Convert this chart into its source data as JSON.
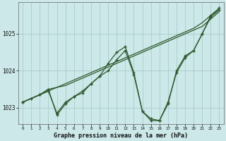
{
  "title": "Graphe pression niveau de la mer (hPa)",
  "background_color": "#cce8e8",
  "grid_color": "#aacccc",
  "line_color": "#2d5a2d",
  "x_hours": [
    0,
    1,
    2,
    3,
    4,
    5,
    6,
    7,
    8,
    9,
    10,
    11,
    12,
    13,
    14,
    15,
    16,
    17,
    18,
    19,
    20,
    21,
    22,
    23
  ],
  "line1_x": [
    0,
    1,
    2,
    3,
    4,
    5,
    6,
    7,
    8,
    9,
    10,
    11,
    12,
    13,
    14,
    15,
    16,
    17,
    18,
    19,
    20,
    21,
    22,
    23
  ],
  "line1_y": [
    1023.15,
    1023.25,
    1023.35,
    1023.45,
    1022.85,
    1023.15,
    1023.3,
    1023.45,
    1023.65,
    1023.85,
    1024.0,
    1024.3,
    1024.55,
    1023.9,
    1022.9,
    1022.65,
    1022.65,
    1023.1,
    1024.0,
    1024.4,
    1024.55,
    1025.0,
    1025.5,
    1025.7
  ],
  "line2_x": [
    0,
    1,
    2,
    3,
    4,
    5,
    6,
    7,
    8,
    9,
    10,
    11,
    12,
    13,
    14,
    15,
    16,
    17,
    18,
    19,
    20,
    21,
    22,
    23
  ],
  "line2_y": [
    1023.15,
    1023.25,
    1023.35,
    1023.5,
    1023.55,
    1023.6,
    1023.7,
    1023.8,
    1023.9,
    1024.0,
    1024.1,
    1024.2,
    1024.3,
    1024.4,
    1024.5,
    1024.6,
    1024.7,
    1024.8,
    1024.9,
    1025.0,
    1025.1,
    1025.2,
    1025.4,
    1025.6
  ],
  "line3_x": [
    0,
    1,
    2,
    3,
    4,
    5,
    6,
    7,
    8,
    9,
    10,
    11,
    12,
    13,
    14,
    15,
    16,
    17,
    18,
    19,
    20,
    21,
    22,
    23
  ],
  "line3_y": [
    1023.15,
    1023.25,
    1023.35,
    1023.45,
    1023.55,
    1023.65,
    1023.75,
    1023.85,
    1023.95,
    1024.05,
    1024.15,
    1024.25,
    1024.35,
    1024.45,
    1024.55,
    1024.65,
    1024.75,
    1024.85,
    1024.95,
    1025.05,
    1025.15,
    1025.3,
    1025.5,
    1025.65
  ],
  "line4_x": [
    0,
    2,
    3,
    4,
    5,
    6,
    7,
    8,
    9,
    10,
    11,
    12,
    13,
    14,
    15,
    16,
    17,
    18,
    19,
    20,
    21,
    22,
    23
  ],
  "line4_y": [
    1023.15,
    1023.35,
    1023.5,
    1022.8,
    1023.1,
    1023.3,
    1023.4,
    1023.65,
    1023.85,
    1024.2,
    1024.5,
    1024.65,
    1023.95,
    1022.9,
    1022.7,
    1022.65,
    1023.15,
    1023.95,
    1024.35,
    1024.55,
    1025.0,
    1025.45,
    1025.65
  ],
  "ylim": [
    1022.55,
    1025.85
  ],
  "yticks": [
    1023,
    1024,
    1025
  ],
  "xlim": [
    -0.5,
    23.5
  ]
}
